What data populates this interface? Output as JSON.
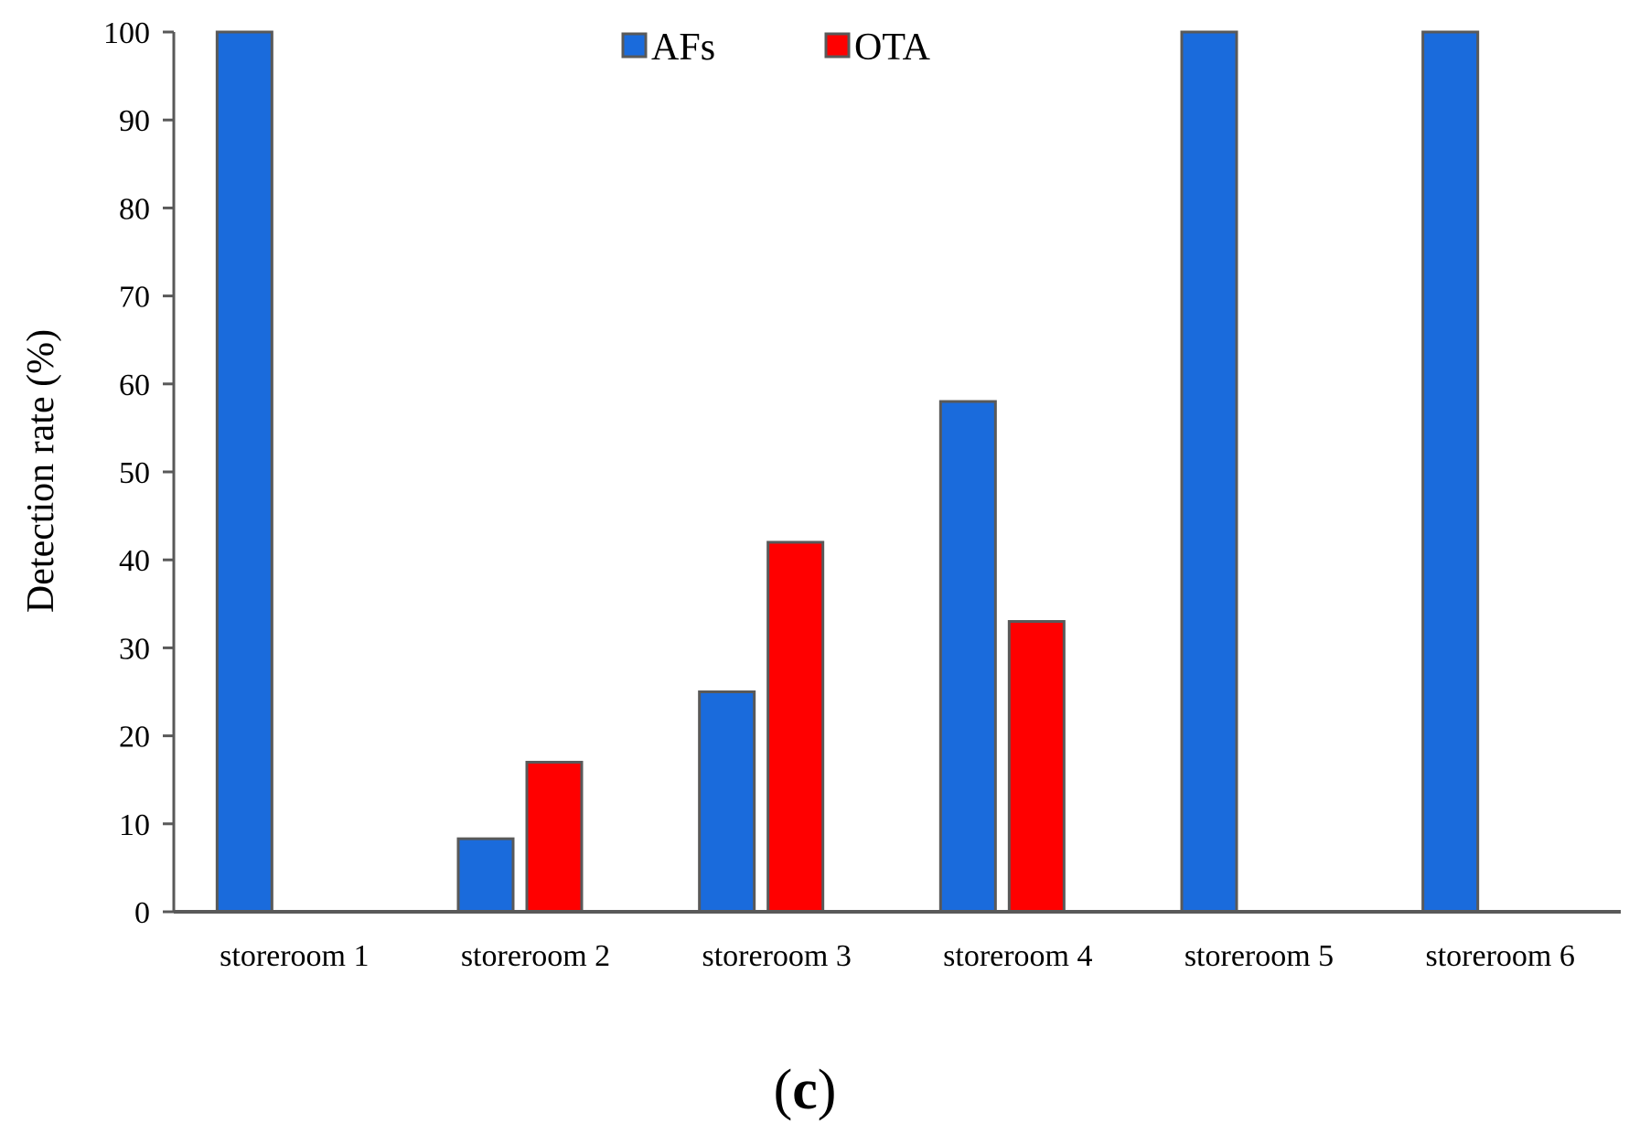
{
  "chart_data": {
    "type": "bar",
    "categories": [
      "storeroom 1",
      "storeroom 2",
      "storeroom 3",
      "storeroom 4",
      "storeroom 5",
      "storeroom 6"
    ],
    "series": [
      {
        "name": "AFs",
        "color": "#1a6bdc",
        "values": [
          100,
          8.3,
          25,
          58,
          100,
          100
        ]
      },
      {
        "name": "OTA",
        "color": "#ff0000",
        "values": [
          0,
          17,
          42,
          33,
          0,
          0
        ]
      }
    ],
    "title": "",
    "xlabel": "",
    "ylabel": "Detection rate (%)",
    "ylim": [
      0,
      100
    ],
    "yticks": [
      0,
      10,
      20,
      30,
      40,
      50,
      60,
      70,
      80,
      90,
      100
    ],
    "grid": false,
    "legend_position": "top-center"
  },
  "panel_label": {
    "open": "(",
    "letter": "c",
    "close": ")"
  }
}
